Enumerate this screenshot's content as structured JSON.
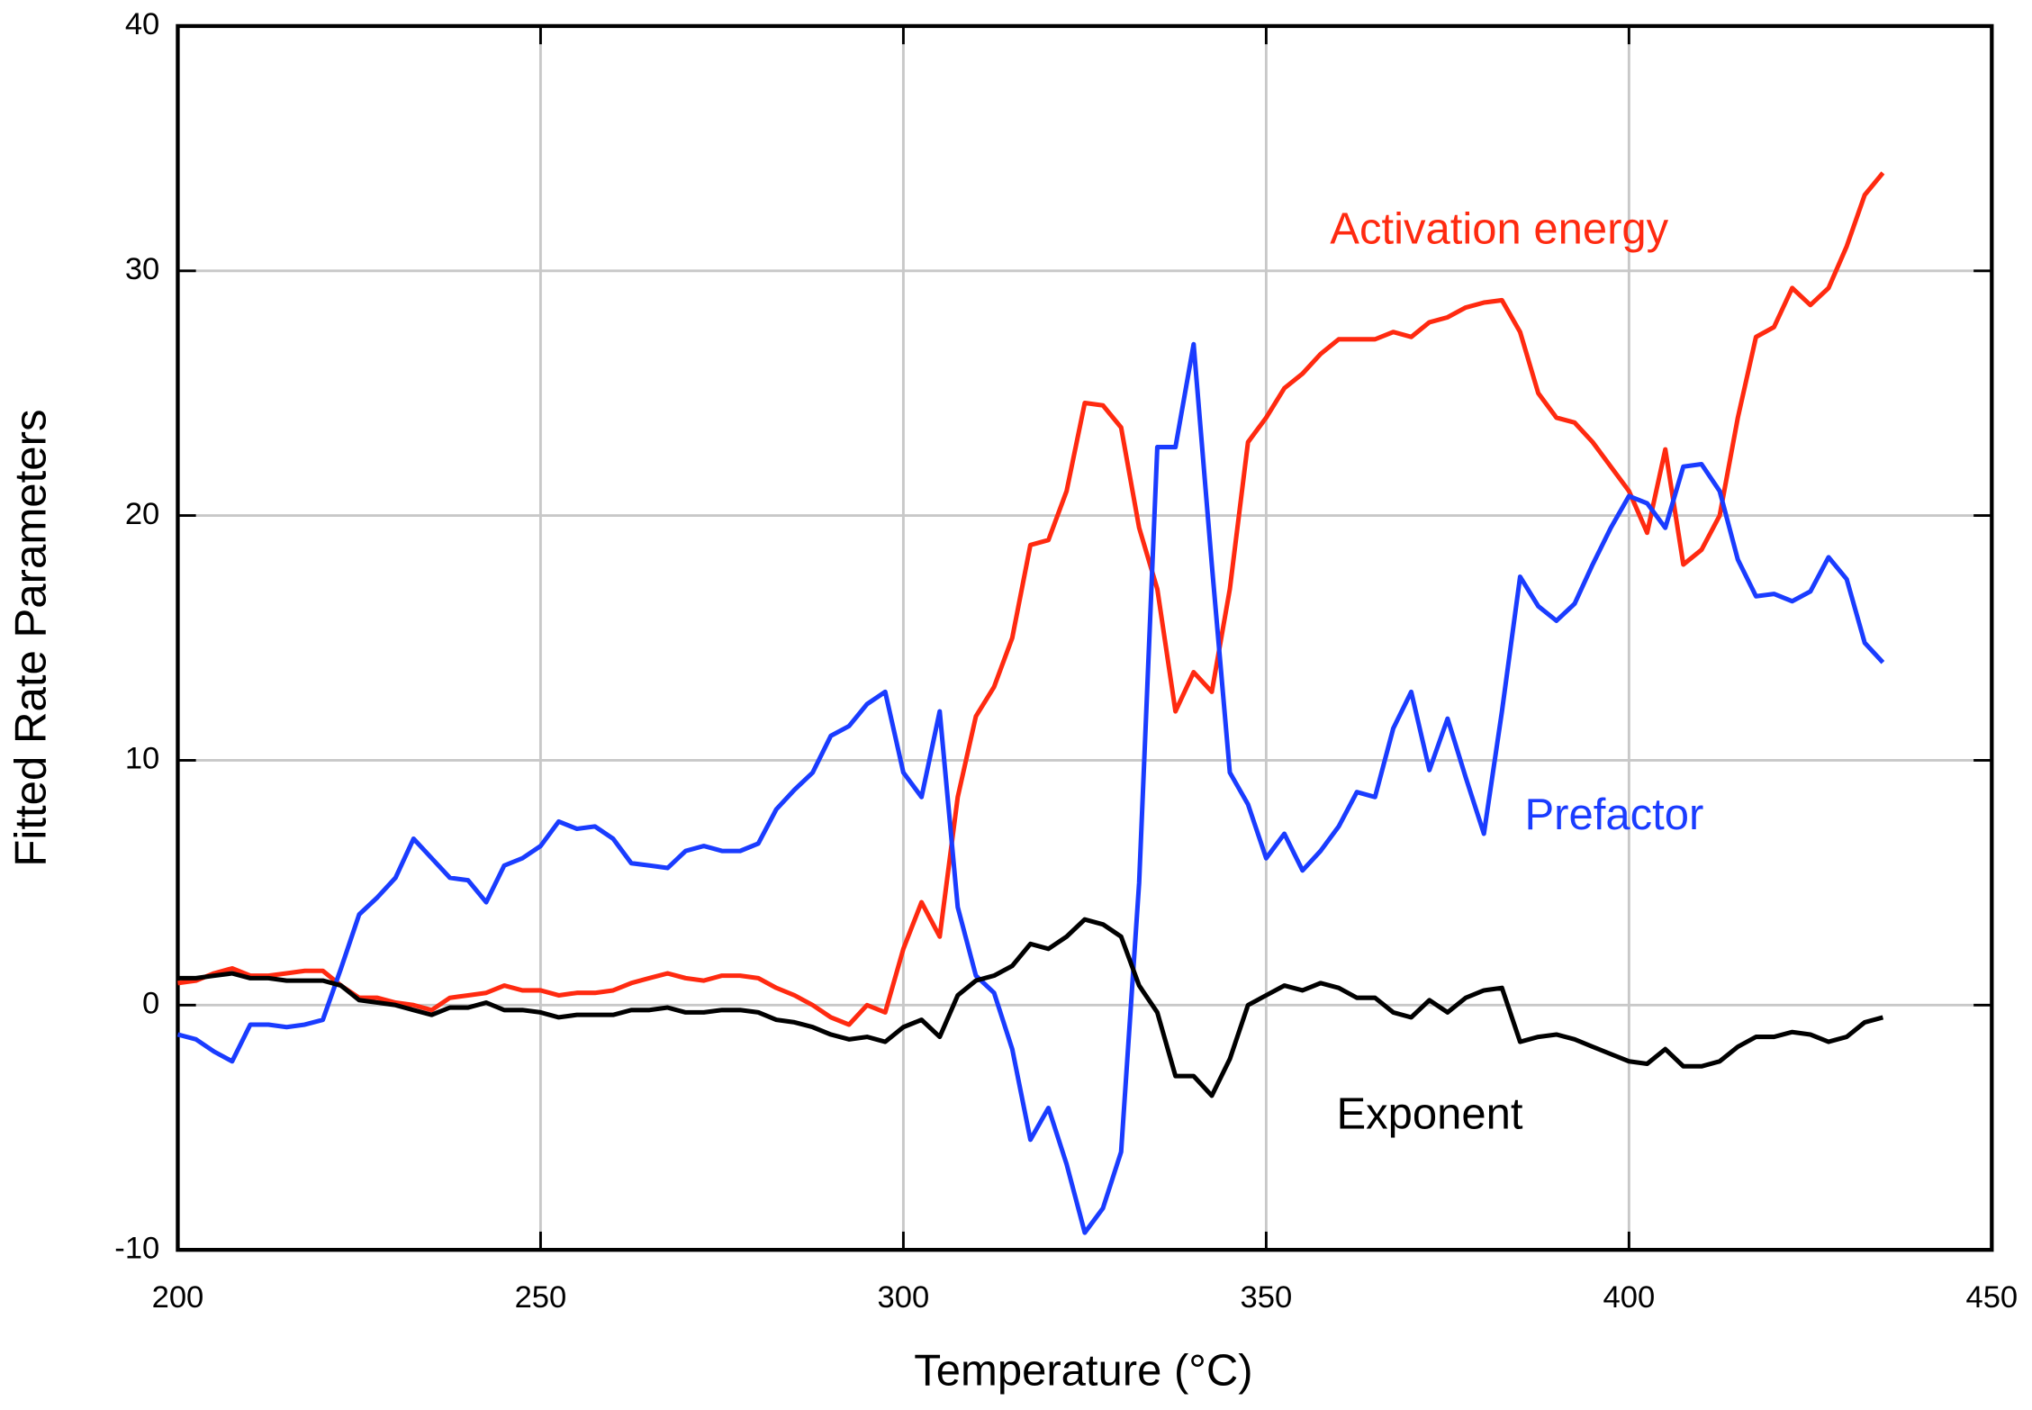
{
  "chart_data": {
    "type": "line",
    "xlabel": "Temperature (°C)",
    "ylabel": "Fitted Rate Parameters",
    "xlim": [
      200,
      450
    ],
    "ylim": [
      -10,
      40
    ],
    "xticks": [
      200,
      250,
      300,
      350,
      400,
      450
    ],
    "yticks": [
      -10,
      0,
      10,
      20,
      30,
      40
    ],
    "grid": true,
    "x": [
      200,
      202.5,
      205,
      207.5,
      210,
      212.5,
      215,
      217.5,
      220,
      222.5,
      225,
      227.5,
      230,
      232.5,
      235,
      237.5,
      240,
      242.5,
      245,
      247.5,
      250,
      252.5,
      255,
      257.5,
      260,
      262.5,
      265,
      267.5,
      270,
      272.5,
      275,
      277.5,
      280,
      282.5,
      285,
      287.5,
      290,
      292.5,
      295,
      297.5,
      300,
      302.5,
      305,
      307.5,
      310,
      312.5,
      315,
      317.5,
      320,
      322.5,
      325,
      327.5,
      330,
      332.5,
      335,
      337.5,
      340,
      342.5,
      345,
      347.5,
      350,
      352.5,
      355,
      357.5,
      360,
      362.5,
      365,
      367.5,
      370,
      372.5,
      375,
      377.5,
      380,
      382.5,
      385,
      387.5,
      390,
      392.5,
      395,
      397.5,
      400,
      402.5,
      405,
      407.5,
      410,
      412.5,
      415,
      417.5,
      420,
      422.5,
      425,
      427.5,
      430,
      432.5,
      435
    ],
    "series": [
      {
        "name": "Activation energy",
        "color": "#ff2a10",
        "values": [
          0.9,
          1.0,
          1.3,
          1.5,
          1.2,
          1.2,
          1.3,
          1.4,
          1.4,
          0.8,
          0.3,
          0.3,
          0.1,
          0.0,
          -0.2,
          0.3,
          0.4,
          0.5,
          0.8,
          0.6,
          0.6,
          0.4,
          0.5,
          0.5,
          0.6,
          0.9,
          1.1,
          1.3,
          1.1,
          1.0,
          1.2,
          1.2,
          1.1,
          0.7,
          0.4,
          0.0,
          -0.5,
          -0.8,
          0.0,
          -0.3,
          2.3,
          4.2,
          2.8,
          8.5,
          11.8,
          13.0,
          15.0,
          18.8,
          19.0,
          21.0,
          24.6,
          24.5,
          23.6,
          19.5,
          17.0,
          12.0,
          13.6,
          12.8,
          17.0,
          23.0,
          24.0,
          25.2,
          25.8,
          26.6,
          27.2,
          27.2,
          27.2,
          27.5,
          27.3,
          27.9,
          28.1,
          28.5,
          28.7,
          28.8,
          27.5,
          25.0,
          24.0,
          23.8,
          23.0,
          22.0,
          21.0,
          19.3,
          22.7,
          18.0,
          18.6,
          20.0,
          24.0,
          27.3,
          27.7,
          29.3,
          28.6,
          29.3,
          31.0,
          33.1,
          34.0
        ]
      },
      {
        "name": "Prefactor",
        "color": "#1a3cff",
        "values": [
          -1.2,
          -1.4,
          -1.9,
          -2.3,
          -0.8,
          -0.8,
          -0.9,
          -0.8,
          -0.6,
          1.5,
          3.7,
          4.4,
          5.2,
          6.8,
          6.0,
          5.2,
          5.1,
          4.2,
          5.7,
          6.0,
          6.5,
          7.5,
          7.2,
          7.3,
          6.8,
          5.8,
          5.7,
          5.6,
          6.3,
          6.5,
          6.3,
          6.3,
          6.6,
          8.0,
          8.8,
          9.5,
          11.0,
          11.4,
          12.3,
          12.8,
          9.5,
          8.5,
          12.0,
          4.0,
          1.2,
          0.5,
          -1.8,
          -5.5,
          -4.2,
          -6.5,
          -9.3,
          -8.3,
          -6.0,
          5.0,
          22.8,
          22.8,
          27.0,
          18.0,
          9.5,
          8.2,
          6.0,
          7.0,
          5.5,
          6.3,
          7.3,
          8.7,
          8.5,
          11.3,
          12.8,
          9.6,
          11.7,
          9.3,
          7.0,
          12.0,
          17.5,
          16.3,
          15.7,
          16.4,
          18.0,
          19.5,
          20.8,
          20.5,
          19.5,
          22.0,
          22.1,
          21.0,
          18.2,
          16.7,
          16.8,
          16.5,
          16.9,
          18.3,
          17.4,
          14.8,
          14.0
        ]
      },
      {
        "name": "Exponent",
        "color": "#000000",
        "values": [
          1.1,
          1.1,
          1.2,
          1.3,
          1.1,
          1.1,
          1.0,
          1.0,
          1.0,
          0.8,
          0.2,
          0.1,
          0.0,
          -0.2,
          -0.4,
          -0.1,
          -0.1,
          0.1,
          -0.2,
          -0.2,
          -0.3,
          -0.5,
          -0.4,
          -0.4,
          -0.4,
          -0.2,
          -0.2,
          -0.1,
          -0.3,
          -0.3,
          -0.2,
          -0.2,
          -0.3,
          -0.6,
          -0.7,
          -0.9,
          -1.2,
          -1.4,
          -1.3,
          -1.5,
          -0.9,
          -0.6,
          -1.3,
          0.4,
          1.0,
          1.2,
          1.6,
          2.5,
          2.3,
          2.8,
          3.5,
          3.3,
          2.8,
          0.8,
          -0.3,
          -2.9,
          -2.9,
          -3.7,
          -2.2,
          0.0,
          0.4,
          0.8,
          0.6,
          0.9,
          0.7,
          0.3,
          0.3,
          -0.3,
          -0.5,
          0.2,
          -0.3,
          0.3,
          0.6,
          0.7,
          -1.5,
          -1.3,
          -1.2,
          -1.4,
          -1.7,
          -2.0,
          -2.3,
          -2.4,
          -1.8,
          -2.5,
          -2.5,
          -2.3,
          -1.7,
          -1.3,
          -1.3,
          -1.1,
          -1.2,
          -1.5,
          -1.3,
          -0.7,
          -0.5
        ]
      }
    ]
  }
}
